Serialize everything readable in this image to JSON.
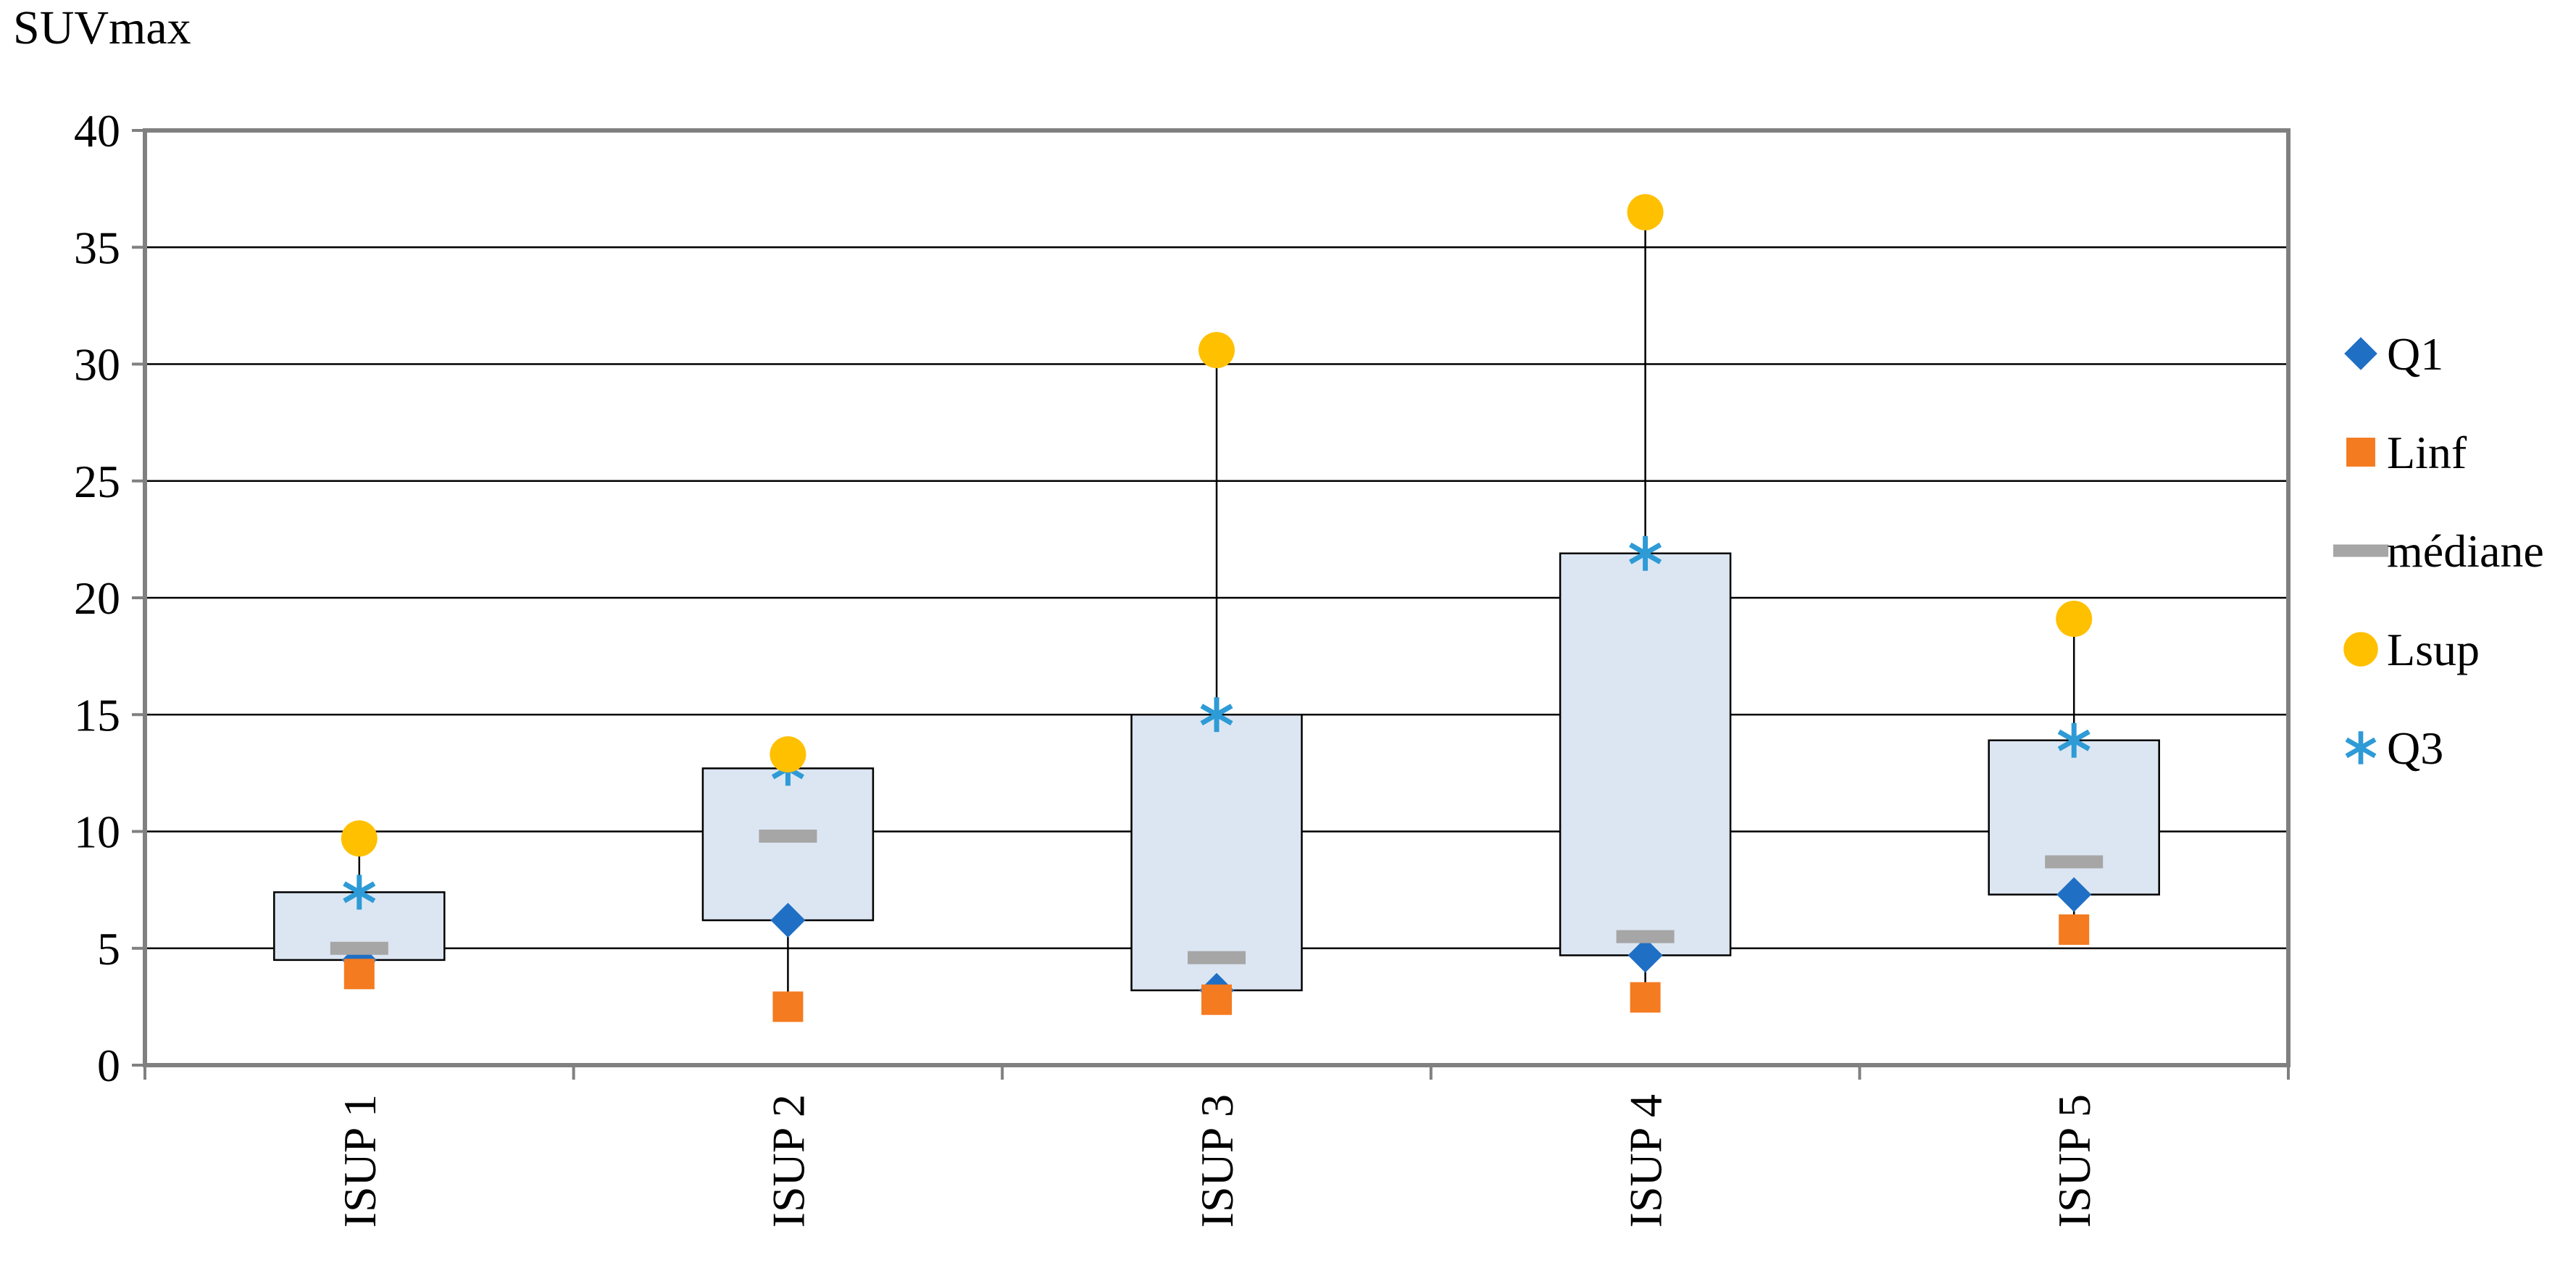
{
  "chart_data": {
    "type": "box",
    "title": "",
    "ylabel": "SUVmax",
    "xlabel": "",
    "ylim": [
      0,
      40
    ],
    "ytick_step": 5,
    "grid": true,
    "legend_position": "right",
    "categories": [
      "ISUP 1",
      "ISUP 2",
      "ISUP 3",
      "ISUP 4",
      "ISUP 5"
    ],
    "series": [
      {
        "name": "Q1",
        "marker": "diamond",
        "color": "#1F6FC5",
        "values": [
          4.5,
          6.2,
          3.2,
          4.7,
          7.3
        ]
      },
      {
        "name": "Linf",
        "marker": "square",
        "color": "#F47B20",
        "values": [
          3.9,
          2.5,
          2.8,
          2.9,
          5.8
        ]
      },
      {
        "name": "médiane",
        "marker": "dash",
        "color": "#A6A6A6",
        "values": [
          5.0,
          9.8,
          4.6,
          5.5,
          8.7
        ]
      },
      {
        "name": "Lsup",
        "marker": "circle",
        "color": "#FFC000",
        "values": [
          9.7,
          13.3,
          30.6,
          36.5,
          19.1
        ]
      },
      {
        "name": "Q3",
        "marker": "asterisk",
        "color": "#2E9BD6",
        "values": [
          7.4,
          12.7,
          15.0,
          21.9,
          13.9
        ]
      }
    ]
  },
  "colors": {
    "box_fill": "#DCE6F2",
    "box_stroke": "#000000",
    "gridline": "#000000",
    "plot_border": "#808080"
  }
}
